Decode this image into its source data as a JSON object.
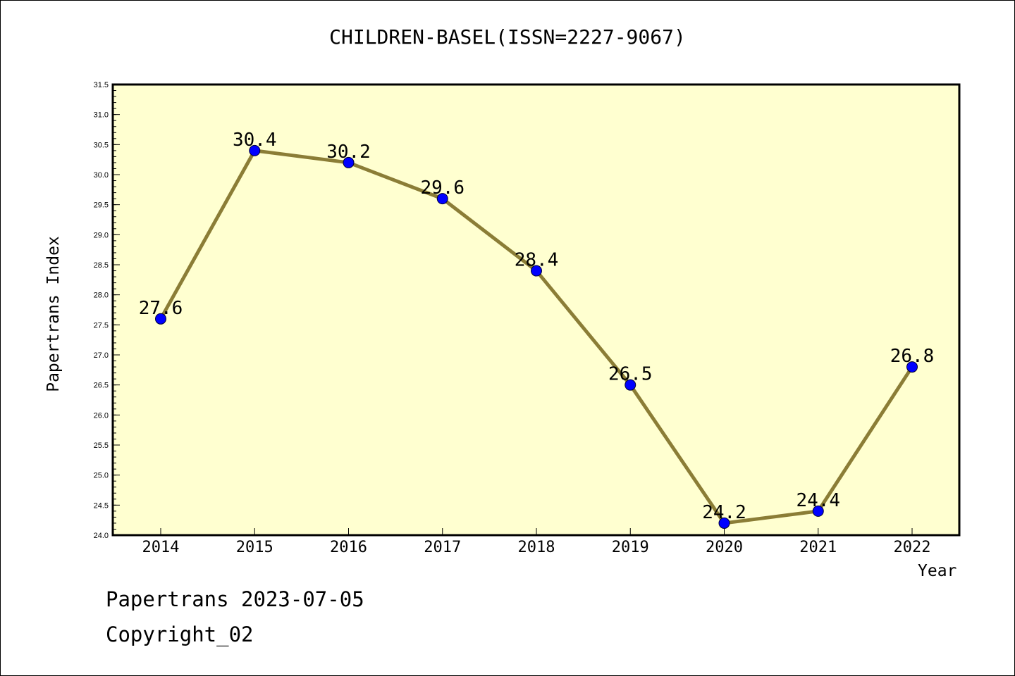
{
  "colors": {
    "plot_background": "#ffffd0",
    "line": "#8b7d36",
    "marker": "#0000ff",
    "frame": "#000000"
  },
  "footer": {
    "line1": "Papertrans 2023-07-05",
    "line2": "Copyright_02"
  },
  "chart_data": {
    "type": "line",
    "title": "CHILDREN-BASEL(ISSN=2227-9067)",
    "xlabel": "Year",
    "ylabel": "Papertrans Index",
    "categories": [
      "2014",
      "2015",
      "2016",
      "2017",
      "2018",
      "2019",
      "2020",
      "2021",
      "2022"
    ],
    "series": [
      {
        "values": [
          27.6,
          30.4,
          30.2,
          29.6,
          28.4,
          26.5,
          24.2,
          24.4,
          26.8
        ]
      }
    ],
    "data_labels": [
      "27.6",
      "30.4",
      "30.2",
      "29.6",
      "28.4",
      "26.5",
      "24.2",
      "24.4",
      "26.8"
    ],
    "ylim": [
      24.0,
      31.5
    ],
    "yticks": [
      "24.0",
      "24.5",
      "25.0",
      "25.5",
      "26.0",
      "26.5",
      "27.0",
      "27.5",
      "28.0",
      "28.5",
      "29.0",
      "29.5",
      "30.0",
      "30.5",
      "31.0",
      "31.5"
    ],
    "grid": false,
    "legend": "none"
  }
}
